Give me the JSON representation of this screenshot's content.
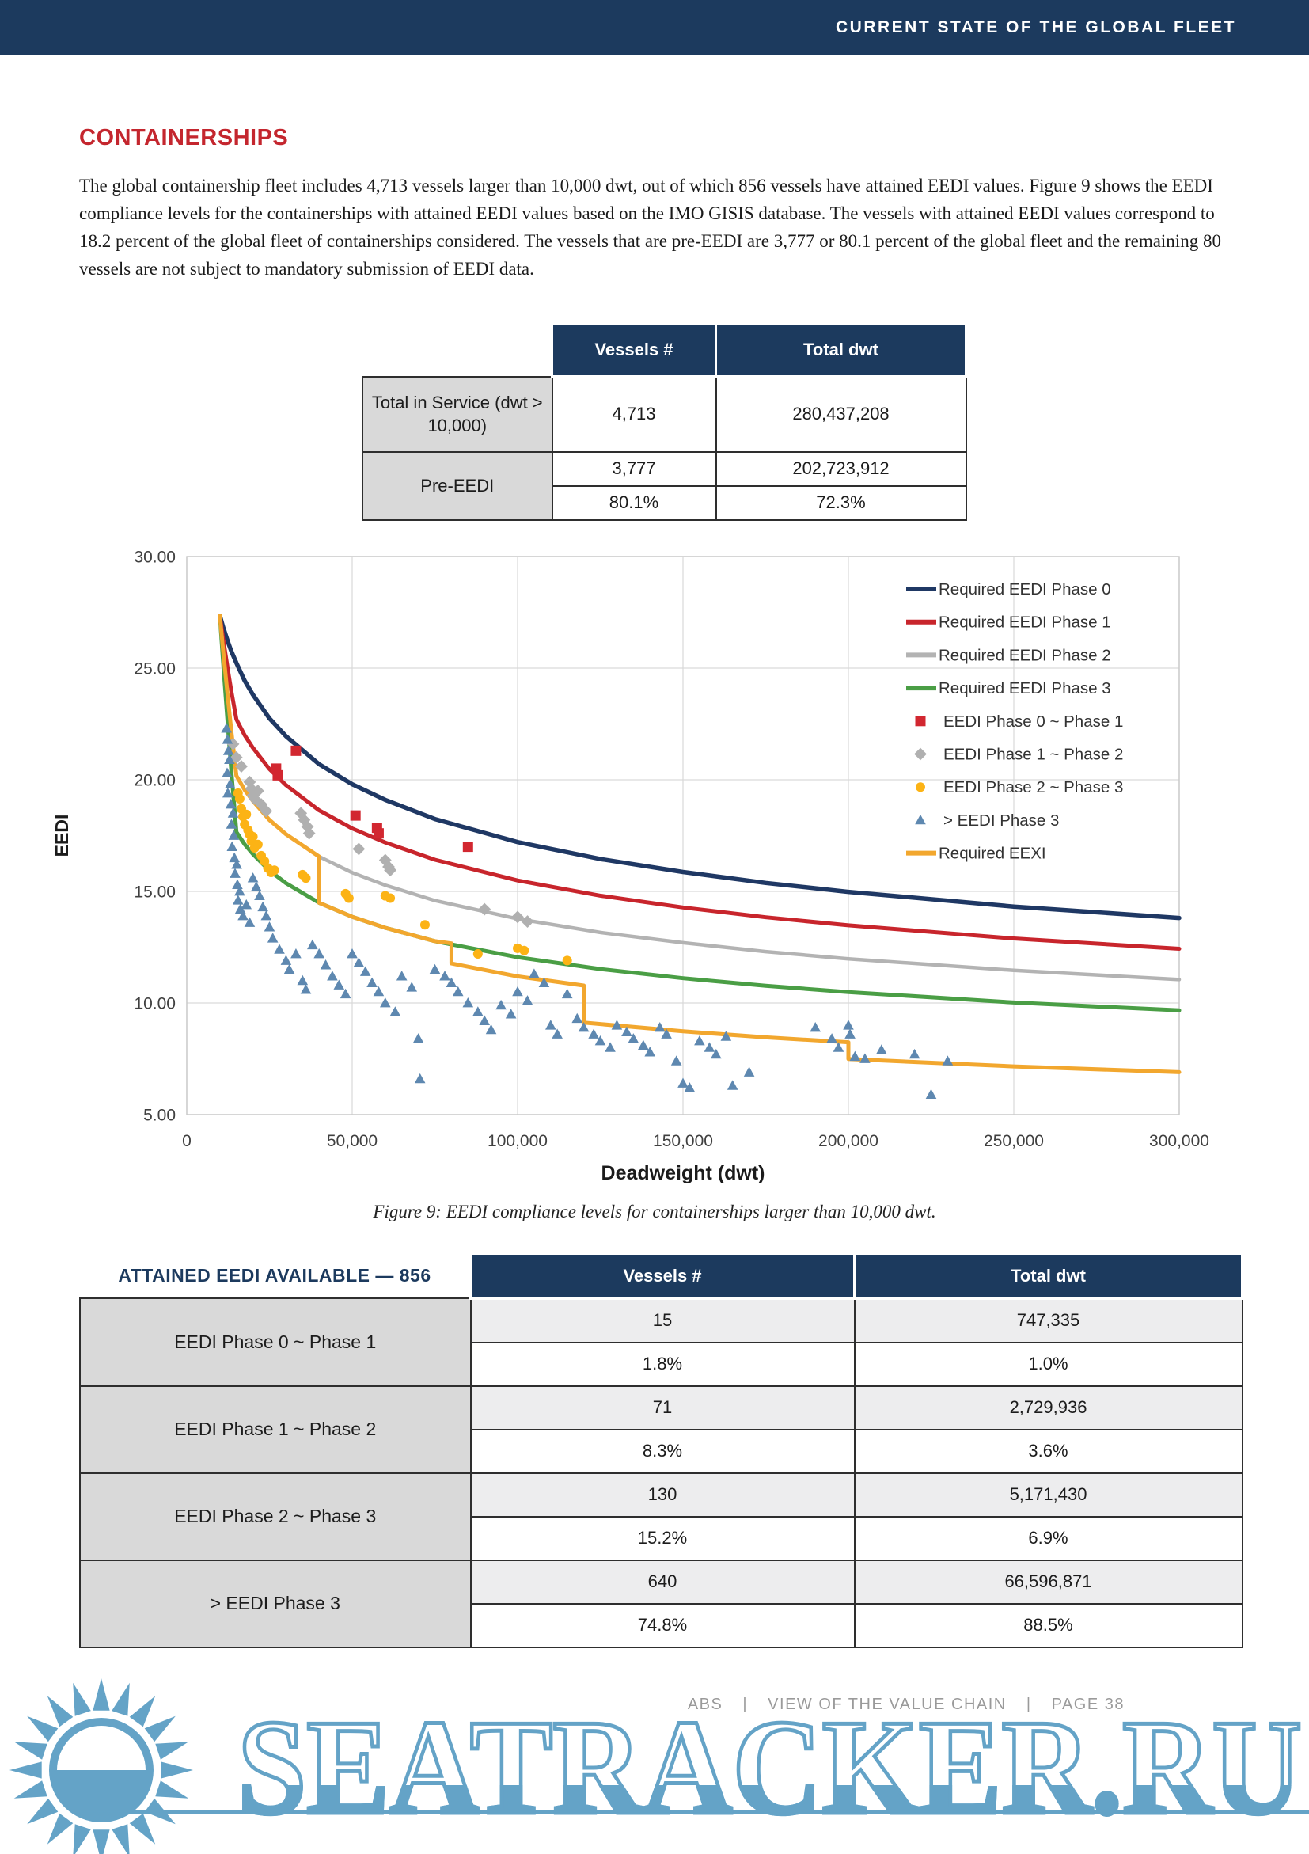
{
  "header": {
    "title": "CURRENT STATE OF THE GLOBAL FLEET"
  },
  "section": {
    "title": "CONTAINERSHIPS",
    "paragraph": "The global containership fleet includes 4,713 vessels larger than 10,000 dwt, out of which 856 vessels have attained EEDI values. Figure 9 shows the EEDI compliance levels for the containerships with attained EEDI values based on the IMO GISIS database. The vessels with attained EEDI values correspond to 18.2 percent of the global fleet of containerships considered. The vessels that are pre-EEDI are 3,777 or 80.1 percent of the global fleet and the remaining 80 vessels are not subject to mandatory submission of EEDI data."
  },
  "summary_table": {
    "col_headers": [
      "Vessels #",
      "Total dwt"
    ],
    "row_total": {
      "label": "Total in Service (dwt > 10,000)",
      "vessels": "4,713",
      "dwt": "280,437,208"
    },
    "row_pre": {
      "label": "Pre-EEDI",
      "vessels": "3,777",
      "dwt": "202,723,912",
      "vessels_pct": "80.1%",
      "dwt_pct": "72.3%"
    }
  },
  "figure_caption": "Figure 9: EEDI compliance levels for containerships larger than 10,000 dwt.",
  "attained_table": {
    "title": "ATTAINED EEDI AVAILABLE — 856",
    "col_headers": [
      "Vessels #",
      "Total dwt"
    ],
    "groups": [
      {
        "label": "EEDI Phase 0 ~ Phase 1",
        "vessels": "15",
        "vessels_pct": "1.8%",
        "dwt": "747,335",
        "dwt_pct": "1.0%"
      },
      {
        "label": "EEDI Phase 1 ~ Phase 2",
        "vessels": "71",
        "vessels_pct": "8.3%",
        "dwt": "2,729,936",
        "dwt_pct": "3.6%"
      },
      {
        "label": "EEDI Phase 2 ~ Phase 3",
        "vessels": "130",
        "vessels_pct": "15.2%",
        "dwt": "5,171,430",
        "dwt_pct": "6.9%"
      },
      {
        "label": "> EEDI Phase 3",
        "vessels": "640",
        "vessels_pct": "74.8%",
        "dwt": "66,596,871",
        "dwt_pct": "88.5%"
      }
    ]
  },
  "footer": {
    "org": "ABS",
    "divider": "|",
    "title": "VIEW OF THE VALUE CHAIN",
    "page": "PAGE 38"
  },
  "watermark": {
    "text": "SEATRACKER.RU",
    "color": "#64a3c7"
  },
  "theme": {
    "navy": "#1c3a5e",
    "accent_red": "#c4262e",
    "table_grey": "#d9d9d9",
    "footer_grey": "#9a9a9a"
  },
  "chart_data": {
    "type": "line",
    "title": "",
    "xlabel": "Deadweight (dwt)",
    "ylabel": "EEDI",
    "xlim": [
      0,
      300000
    ],
    "ylim": [
      5,
      30
    ],
    "grid": true,
    "legend_position": "top-right",
    "xticks": [
      {
        "v": 0,
        "label": "0"
      },
      {
        "v": 50000,
        "label": "50,000"
      },
      {
        "v": 100000,
        "label": "100,000"
      },
      {
        "v": 150000,
        "label": "150,000"
      },
      {
        "v": 200000,
        "label": "200,000"
      },
      {
        "v": 250000,
        "label": "250,000"
      },
      {
        "v": 300000,
        "label": "300,000"
      }
    ],
    "yticks": [
      {
        "v": 5,
        "label": "5.00"
      },
      {
        "v": 10,
        "label": "10.00"
      },
      {
        "v": 15,
        "label": "15.00"
      },
      {
        "v": 20,
        "label": "20.00"
      },
      {
        "v": 25,
        "label": "25.00"
      },
      {
        "v": 30,
        "label": "30.00"
      }
    ],
    "line_series": [
      {
        "name": "Required EEDI Phase 0",
        "color": "#1f3864",
        "width": 5.5,
        "x": [
          10000,
          11000,
          12500,
          13500,
          15000,
          17500,
          20000,
          25000,
          30000,
          40000,
          50000,
          60000,
          75000,
          100000,
          125000,
          150000,
          175000,
          200000,
          250000,
          300000
        ],
        "y": [
          27.35,
          26.83,
          26.15,
          25.75,
          25.23,
          24.44,
          23.81,
          22.75,
          21.95,
          20.7,
          19.8,
          19.1,
          18.24,
          17.21,
          16.45,
          15.87,
          15.38,
          14.98,
          14.32,
          13.81
        ]
      },
      {
        "name": "Required EEDI Phase 1",
        "color": "#c8252c",
        "width": 5,
        "x": [
          10000,
          11000,
          12500,
          13500,
          15000,
          17500,
          20000,
          25000,
          30000,
          40000,
          50000,
          60000,
          75000,
          100000,
          125000,
          150000,
          175000,
          200000,
          250000,
          300000
        ],
        "y": [
          27.35,
          26.29,
          24.84,
          23.95,
          22.71,
          22.0,
          21.43,
          20.48,
          19.76,
          18.63,
          17.82,
          17.19,
          16.42,
          15.49,
          14.81,
          14.28,
          13.84,
          13.48,
          12.89,
          12.43
        ]
      },
      {
        "name": "Required EEDI Phase 2",
        "color": "#b3b3b3",
        "width": 4.5,
        "x": [
          10000,
          11000,
          12500,
          13500,
          15000,
          17500,
          20000,
          25000,
          30000,
          40000,
          50000,
          60000,
          75000,
          100000,
          125000,
          150000,
          175000,
          200000,
          250000,
          300000
        ],
        "y": [
          27.35,
          25.76,
          23.54,
          22.15,
          20.18,
          19.55,
          19.05,
          18.2,
          17.56,
          16.56,
          15.84,
          15.28,
          14.59,
          13.77,
          13.16,
          12.7,
          12.3,
          11.98,
          11.46,
          11.05
        ]
      },
      {
        "name": "Required EEDI Phase 3",
        "color": "#4a9e45",
        "width": 5,
        "x": [
          10000,
          11000,
          12500,
          13500,
          15000,
          17500,
          20000,
          25000,
          30000,
          40000,
          50000,
          60000,
          75000,
          100000,
          125000,
          150000,
          175000,
          200000,
          250000,
          300000
        ],
        "y": [
          27.35,
          25.22,
          22.23,
          20.34,
          17.66,
          17.11,
          16.67,
          15.93,
          15.37,
          14.49,
          13.86,
          13.37,
          12.77,
          12.05,
          11.52,
          11.11,
          10.77,
          10.49,
          10.02,
          9.67
        ]
      },
      {
        "name": "Required EEXI",
        "color": "#f2a72e",
        "width": 5,
        "x": [
          10000,
          11000,
          12500,
          13500,
          15000,
          17500,
          20000,
          25000,
          30000,
          40000,
          40000,
          50000,
          60000,
          75000,
          80000,
          80000,
          100000,
          120000,
          120000,
          150000,
          175000,
          200000,
          200000,
          250000,
          300000
        ],
        "y": [
          27.35,
          25.76,
          23.54,
          22.15,
          20.18,
          19.55,
          19.05,
          18.2,
          17.56,
          16.56,
          14.49,
          13.86,
          13.37,
          12.77,
          12.67,
          11.77,
          11.19,
          10.78,
          9.12,
          8.73,
          8.46,
          8.24,
          7.49,
          7.16,
          6.9
        ]
      }
    ],
    "scatter_series": [
      {
        "name": "EEDI Phase 0 ~ Phase 1",
        "marker": "square",
        "color": "#d22730",
        "points": [
          [
            27000,
            20.5
          ],
          [
            27500,
            20.2
          ],
          [
            33000,
            21.3
          ],
          [
            51000,
            18.4
          ],
          [
            57500,
            17.85
          ],
          [
            58000,
            17.6
          ],
          [
            85000,
            17.0
          ]
        ]
      },
      {
        "name": "EEDI Phase 1 ~ Phase 2",
        "marker": "diamond",
        "color": "#b0b0b0",
        "points": [
          [
            14000,
            21.6
          ],
          [
            15000,
            21.0
          ],
          [
            16500,
            20.6
          ],
          [
            19000,
            19.9
          ],
          [
            19500,
            19.6
          ],
          [
            20000,
            19.3
          ],
          [
            20500,
            19.15
          ],
          [
            21500,
            19.5
          ],
          [
            22500,
            18.9
          ],
          [
            24000,
            18.6
          ],
          [
            34500,
            18.5
          ],
          [
            35500,
            18.2
          ],
          [
            36500,
            17.9
          ],
          [
            37000,
            17.6
          ],
          [
            52000,
            16.9
          ],
          [
            60000,
            16.4
          ],
          [
            61000,
            16.1
          ],
          [
            61500,
            15.95
          ],
          [
            90000,
            14.2
          ],
          [
            100000,
            13.85
          ],
          [
            103000,
            13.65
          ]
        ]
      },
      {
        "name": "EEDI Phase 2 ~ Phase 3",
        "marker": "circle",
        "color": "#fcb315",
        "points": [
          [
            15500,
            19.4
          ],
          [
            16000,
            19.15
          ],
          [
            16500,
            18.7
          ],
          [
            17000,
            18.35
          ],
          [
            17500,
            18.0
          ],
          [
            18000,
            18.45
          ],
          [
            18500,
            17.75
          ],
          [
            19000,
            17.55
          ],
          [
            19500,
            17.25
          ],
          [
            20000,
            17.45
          ],
          [
            20500,
            16.95
          ],
          [
            21500,
            17.1
          ],
          [
            22500,
            16.6
          ],
          [
            23500,
            16.35
          ],
          [
            24500,
            16.05
          ],
          [
            25500,
            15.85
          ],
          [
            26500,
            15.95
          ],
          [
            35000,
            15.75
          ],
          [
            36000,
            15.6
          ],
          [
            48000,
            14.9
          ],
          [
            49000,
            14.7
          ],
          [
            60000,
            14.8
          ],
          [
            61500,
            14.7
          ],
          [
            72000,
            13.5
          ],
          [
            88000,
            12.2
          ],
          [
            100000,
            12.45
          ],
          [
            102000,
            12.35
          ],
          [
            115000,
            11.9
          ]
        ]
      },
      {
        "name": "> EEDI Phase 3",
        "marker": "triangle",
        "color": "#5e88b0",
        "points": [
          [
            12000,
            22.3
          ],
          [
            12300,
            21.8
          ],
          [
            12600,
            21.3
          ],
          [
            12900,
            20.9
          ],
          [
            12200,
            20.3
          ],
          [
            13100,
            19.8
          ],
          [
            12400,
            19.4
          ],
          [
            13300,
            18.9
          ],
          [
            14000,
            18.5
          ],
          [
            13500,
            18.0
          ],
          [
            14200,
            17.5
          ],
          [
            13700,
            17.0
          ],
          [
            14400,
            16.5
          ],
          [
            15100,
            16.2
          ],
          [
            14600,
            15.8
          ],
          [
            15300,
            15.3
          ],
          [
            16000,
            15.0
          ],
          [
            15500,
            14.6
          ],
          [
            16200,
            14.2
          ],
          [
            17000,
            13.9
          ],
          [
            18000,
            14.4
          ],
          [
            19000,
            13.6
          ],
          [
            20000,
            15.6
          ],
          [
            21000,
            15.2
          ],
          [
            22000,
            14.8
          ],
          [
            23000,
            14.3
          ],
          [
            24000,
            13.9
          ],
          [
            25000,
            13.4
          ],
          [
            26000,
            12.9
          ],
          [
            28000,
            12.4
          ],
          [
            30000,
            11.9
          ],
          [
            31000,
            11.5
          ],
          [
            33000,
            12.2
          ],
          [
            35000,
            11.0
          ],
          [
            36000,
            10.6
          ],
          [
            38000,
            12.6
          ],
          [
            40000,
            12.2
          ],
          [
            42000,
            11.7
          ],
          [
            44000,
            11.2
          ],
          [
            46000,
            10.8
          ],
          [
            48000,
            10.4
          ],
          [
            50000,
            12.2
          ],
          [
            52000,
            11.8
          ],
          [
            54000,
            11.4
          ],
          [
            56000,
            10.9
          ],
          [
            58000,
            10.5
          ],
          [
            60000,
            10.0
          ],
          [
            63000,
            9.6
          ],
          [
            65000,
            11.2
          ],
          [
            68000,
            10.7
          ],
          [
            70000,
            8.4
          ],
          [
            70500,
            6.6
          ],
          [
            75000,
            11.5
          ],
          [
            78000,
            11.2
          ],
          [
            80000,
            10.9
          ],
          [
            82000,
            10.5
          ],
          [
            85000,
            10.0
          ],
          [
            88000,
            9.6
          ],
          [
            90000,
            9.2
          ],
          [
            92000,
            8.8
          ],
          [
            95000,
            9.9
          ],
          [
            98000,
            9.5
          ],
          [
            100000,
            10.5
          ],
          [
            103000,
            10.1
          ],
          [
            105000,
            11.3
          ],
          [
            108000,
            10.9
          ],
          [
            110000,
            9.0
          ],
          [
            112000,
            8.6
          ],
          [
            115000,
            10.4
          ],
          [
            118000,
            9.3
          ],
          [
            120000,
            8.9
          ],
          [
            123000,
            8.6
          ],
          [
            125000,
            8.3
          ],
          [
            128000,
            8.0
          ],
          [
            130000,
            9.0
          ],
          [
            133000,
            8.7
          ],
          [
            135000,
            8.4
          ],
          [
            138000,
            8.1
          ],
          [
            140000,
            7.8
          ],
          [
            143000,
            8.9
          ],
          [
            145000,
            8.6
          ],
          [
            148000,
            7.4
          ],
          [
            150000,
            6.4
          ],
          [
            152000,
            6.2
          ],
          [
            155000,
            8.3
          ],
          [
            158000,
            8.0
          ],
          [
            160000,
            7.7
          ],
          [
            163000,
            8.5
          ],
          [
            165000,
            6.3
          ],
          [
            170000,
            6.9
          ],
          [
            190000,
            8.9
          ],
          [
            195000,
            8.4
          ],
          [
            197000,
            8.0
          ],
          [
            200000,
            9.0
          ],
          [
            200500,
            8.6
          ],
          [
            202000,
            7.6
          ],
          [
            205000,
            7.5
          ],
          [
            210000,
            7.9
          ],
          [
            220000,
            7.7
          ],
          [
            225000,
            5.9
          ],
          [
            230000,
            7.4
          ]
        ]
      }
    ]
  }
}
